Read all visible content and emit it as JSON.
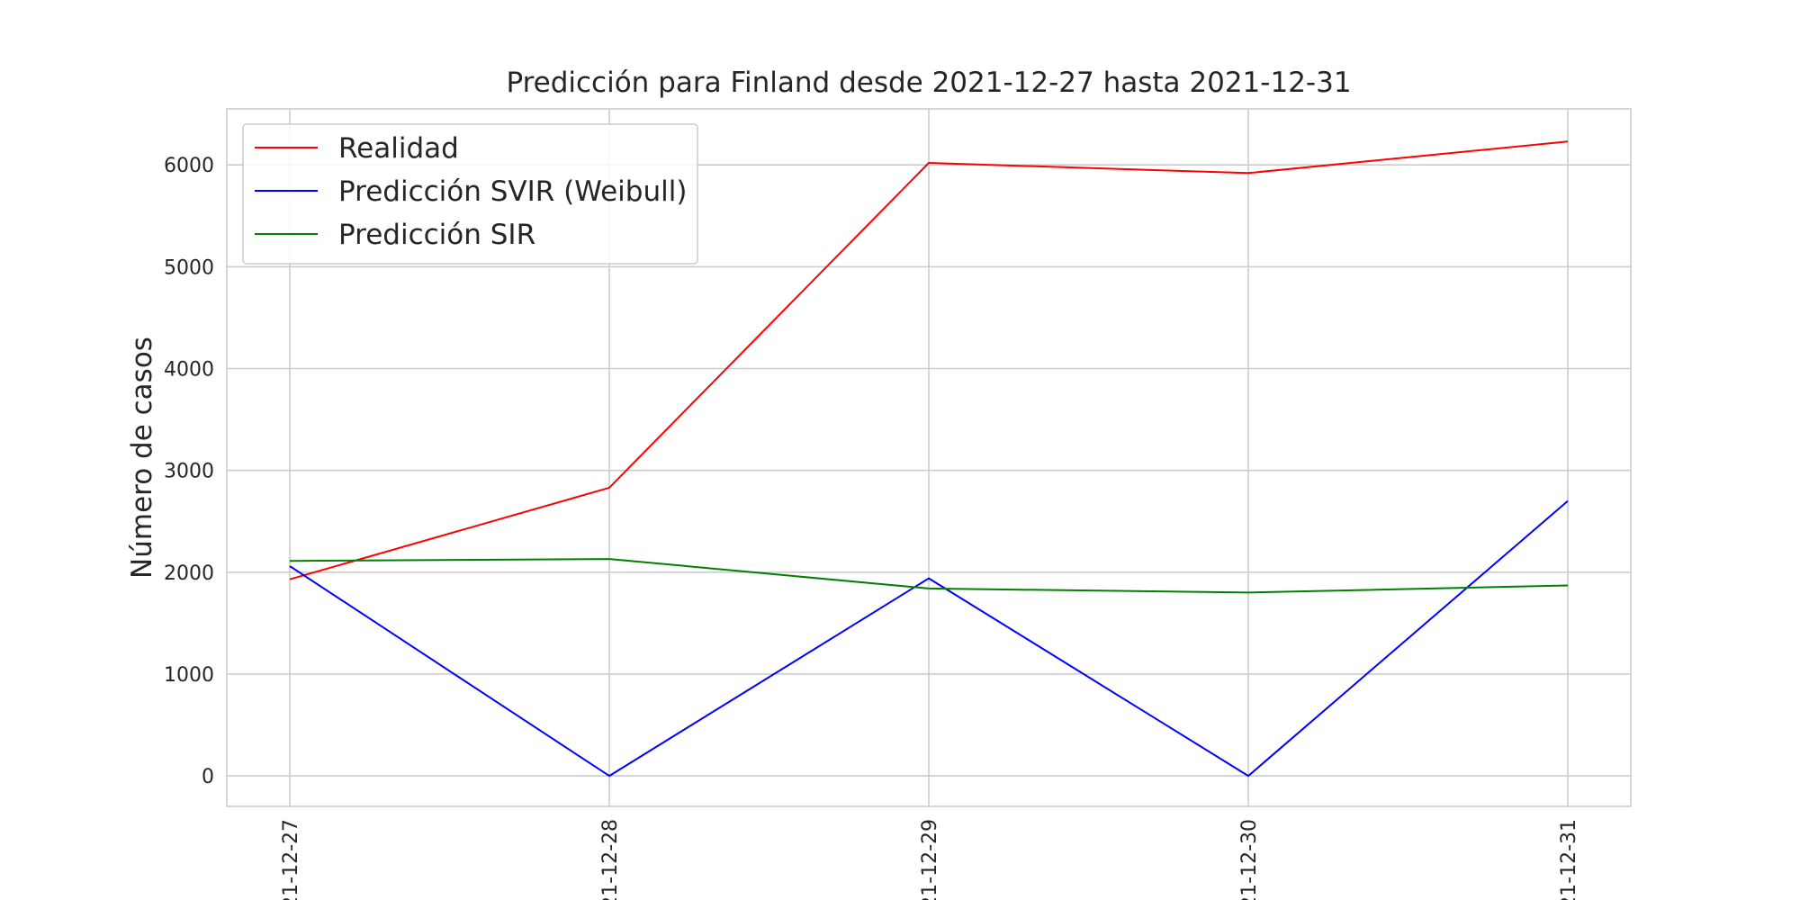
{
  "chart_data": {
    "type": "line",
    "title": "Predicción para Finland desde 2021-12-27 hasta 2021-12-31",
    "xlabel": "",
    "ylabel": "Número de casos",
    "x": [
      "2021-12-27",
      "2021-12-28",
      "2021-12-29",
      "2021-12-30",
      "2021-12-31"
    ],
    "x_tick_labels": [
      "21-12-27",
      "21-12-28",
      "21-12-29",
      "21-12-30",
      "21-12-31"
    ],
    "y_ticks": [
      0,
      1000,
      2000,
      3000,
      4000,
      5000,
      6000
    ],
    "y_tick_labels": [
      "0",
      "1000",
      "2000",
      "3000",
      "4000",
      "5000",
      "6000"
    ],
    "ylim": [
      -300,
      6550
    ],
    "grid": true,
    "legend_position": "top-left",
    "series": [
      {
        "name": "Realidad",
        "color": "#ff0000",
        "values": [
          1930,
          2830,
          6020,
          5920,
          6230
        ]
      },
      {
        "name": "Predicción SVIR (Weibull)",
        "color": "#0000ff",
        "values": [
          2060,
          0,
          1940,
          0,
          2700
        ]
      },
      {
        "name": "Predicción SIR",
        "color": "#008000",
        "values": [
          2110,
          2130,
          1840,
          1800,
          1870
        ]
      }
    ]
  }
}
